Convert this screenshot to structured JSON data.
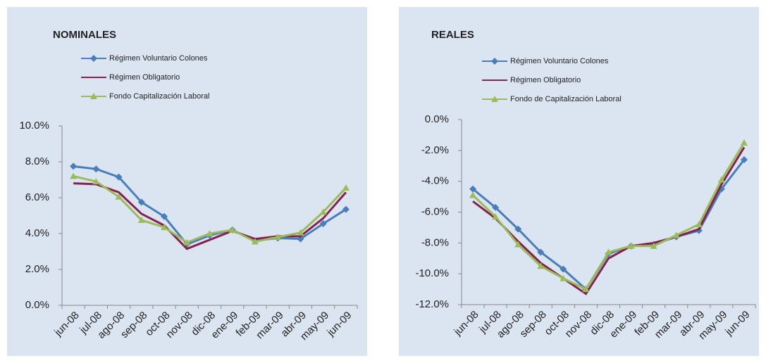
{
  "chart_data": [
    {
      "type": "line",
      "title": "NOMINALES",
      "categories": [
        "jun-08",
        "jul-08",
        "ago-08",
        "sep-08",
        "oct-08",
        "nov-08",
        "dic-08",
        "ene-09",
        "feb-09",
        "mar-09",
        "abr-09",
        "may-09",
        "jun-09"
      ],
      "series": [
        {
          "name": "Régimen Voluntario Colones",
          "color": "#4a7ebb",
          "marker": "diamond",
          "values": [
            7.75,
            7.6,
            7.15,
            5.75,
            4.95,
            3.4,
            3.9,
            4.2,
            3.6,
            3.75,
            3.7,
            4.55,
            5.35
          ]
        },
        {
          "name": "Régimen Obligatorio",
          "color": "#86224f",
          "marker": "none",
          "values": [
            6.8,
            6.75,
            6.3,
            5.1,
            4.45,
            3.15,
            3.65,
            4.15,
            3.7,
            3.85,
            3.85,
            4.85,
            6.3
          ]
        },
        {
          "name": "Fondo Capitalización  Laboral",
          "color": "#9bbb59",
          "marker": "triangle",
          "values": [
            7.2,
            6.9,
            6.05,
            4.75,
            4.35,
            3.5,
            4.0,
            4.2,
            3.55,
            3.8,
            4.05,
            5.2,
            6.55
          ]
        }
      ],
      "ylim": [
        0,
        10
      ],
      "yticks": [
        {
          "value": 0,
          "label": "0.0%"
        },
        {
          "value": 2,
          "label": "2.0%"
        },
        {
          "value": 4,
          "label": "4.0%"
        },
        {
          "value": 6,
          "label": "6.0%"
        },
        {
          "value": 8,
          "label": "8.0%"
        },
        {
          "value": 10,
          "label": "10.0%"
        }
      ],
      "grid": false
    },
    {
      "type": "line",
      "title": "REALES",
      "categories": [
        "jun-08",
        "jul-08",
        "ago-08",
        "sep-08",
        "oct-08",
        "nov-08",
        "dic-08",
        "ene-09",
        "feb-09",
        "mar-09",
        "abr-09",
        "may-09",
        "jun-09"
      ],
      "series": [
        {
          "name": "Régimen Voluntario Colones",
          "color": "#4a7ebb",
          "marker": "diamond",
          "values": [
            -4.5,
            -5.7,
            -7.1,
            -8.6,
            -9.7,
            -11.0,
            -8.7,
            -8.2,
            -8.1,
            -7.6,
            -7.2,
            -4.5,
            -2.6
          ]
        },
        {
          "name": "Régimen Obligatorio",
          "color": "#86224f",
          "marker": "none",
          "values": [
            -5.3,
            -6.4,
            -7.9,
            -9.3,
            -10.3,
            -11.3,
            -9.0,
            -8.2,
            -8.0,
            -7.6,
            -7.1,
            -4.2,
            -1.8
          ]
        },
        {
          "name": "Fondo de Capitalización Laboral",
          "color": "#9bbb59",
          "marker": "triangle",
          "values": [
            -4.9,
            -6.3,
            -8.1,
            -9.5,
            -10.3,
            -11.0,
            -8.6,
            -8.2,
            -8.2,
            -7.5,
            -6.8,
            -3.9,
            -1.5
          ]
        }
      ],
      "ylim": [
        -12,
        0
      ],
      "yticks": [
        {
          "value": -12,
          "label": "-12.0%"
        },
        {
          "value": -10,
          "label": "-10.0%"
        },
        {
          "value": -8,
          "label": "-8.0%"
        },
        {
          "value": -6,
          "label": "-6.0%"
        },
        {
          "value": -4,
          "label": "-4.0%"
        },
        {
          "value": -2,
          "label": "-2.0%"
        },
        {
          "value": 0,
          "label": "0.0%"
        }
      ],
      "grid": false
    }
  ]
}
